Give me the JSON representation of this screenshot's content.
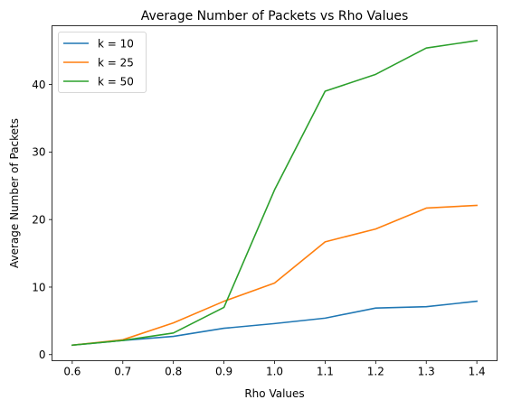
{
  "chart_data": {
    "type": "line",
    "title": "Average Number of Packets vs Rho Values",
    "xlabel": "Rho Values",
    "ylabel": "Average Number of Packets",
    "x": [
      0.6,
      0.7,
      0.8,
      0.9,
      1.0,
      1.1,
      1.2,
      1.3,
      1.4
    ],
    "x_ticks": [
      "0.6",
      "0.7",
      "0.8",
      "0.9",
      "1.0",
      "1.1",
      "1.2",
      "1.3",
      "1.4"
    ],
    "y_ticks": [
      "0",
      "10",
      "20",
      "30",
      "40"
    ],
    "xlim": [
      0.56,
      1.44
    ],
    "ylim": [
      -0.9,
      48.7
    ],
    "grid": false,
    "legend_position": "top-left",
    "series": [
      {
        "name": "k = 10",
        "color": "#1f77b4",
        "values": [
          1.4,
          2.1,
          2.7,
          3.9,
          4.6,
          5.4,
          6.9,
          7.1,
          7.9
        ]
      },
      {
        "name": "k = 25",
        "color": "#ff7f0e",
        "values": [
          1.4,
          2.2,
          4.7,
          7.9,
          10.6,
          16.7,
          18.6,
          21.7,
          22.1
        ]
      },
      {
        "name": "k = 50",
        "color": "#2ca02c",
        "values": [
          1.4,
          2.1,
          3.2,
          7.0,
          24.4,
          39.0,
          41.5,
          45.4,
          46.5
        ]
      }
    ]
  }
}
